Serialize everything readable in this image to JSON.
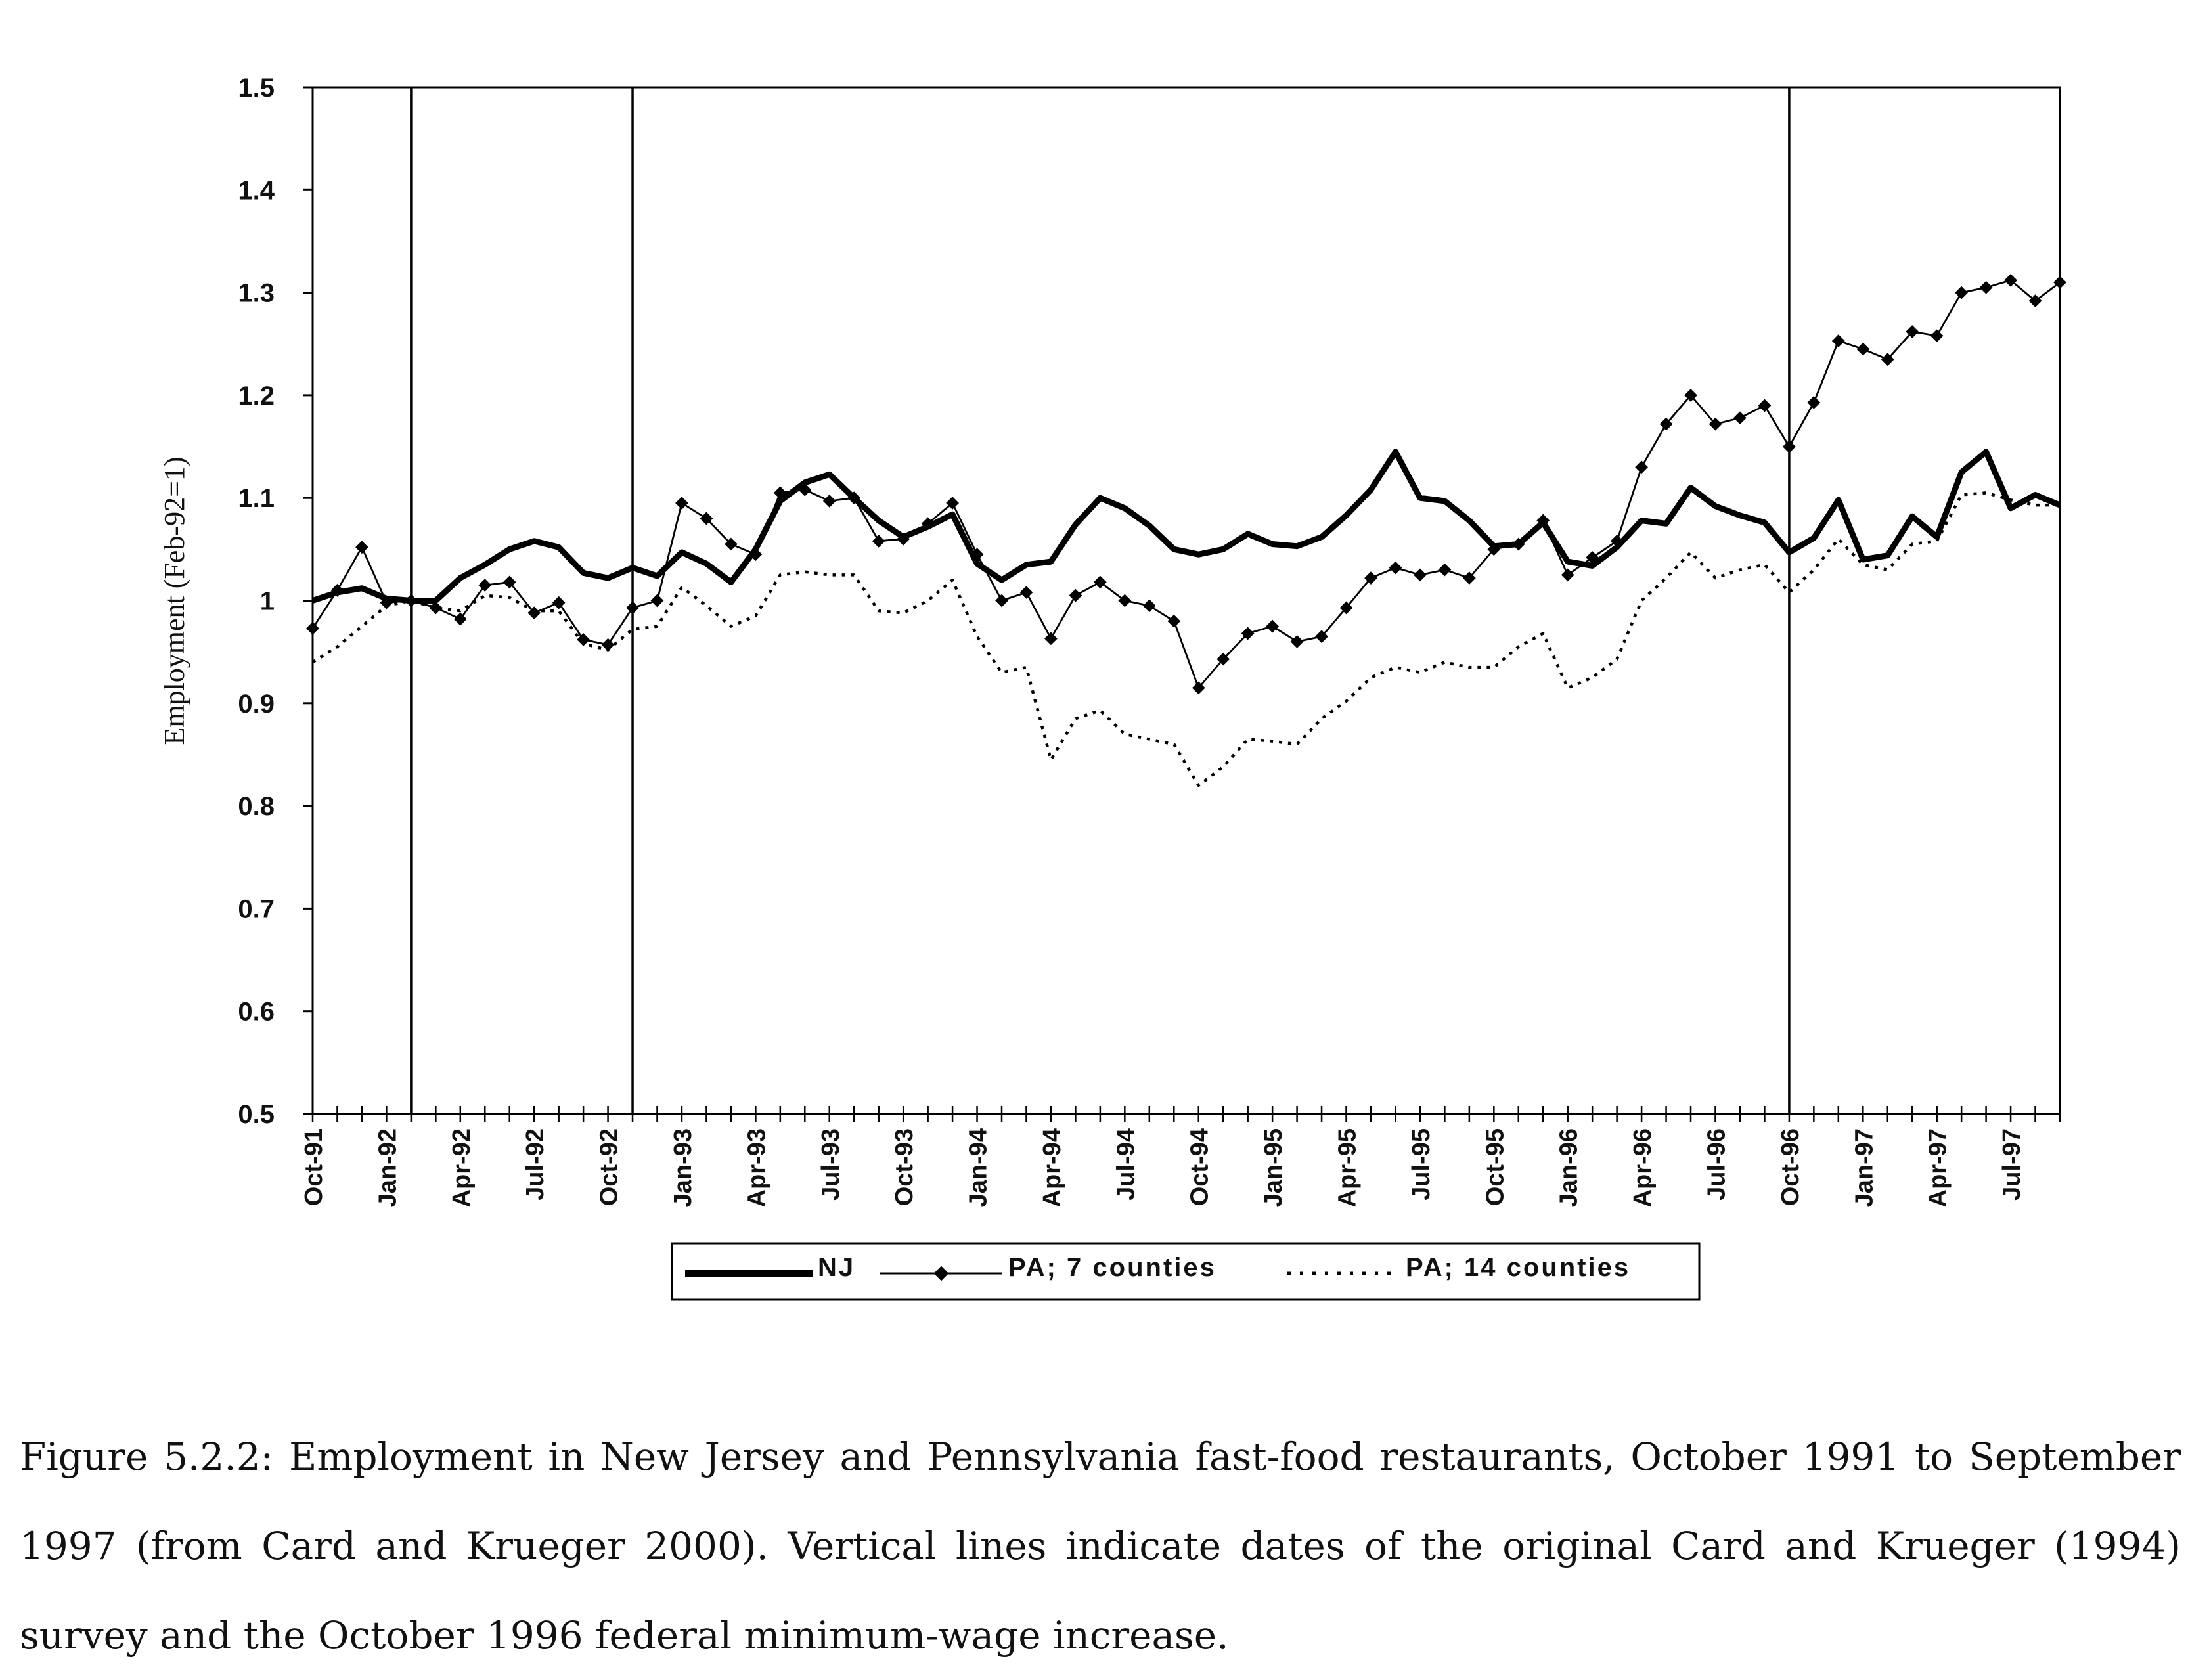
{
  "chart_data": {
    "type": "line",
    "ylabel": "Employment (Feb-92=1)",
    "xlabel": "",
    "ylim": [
      0.5,
      1.5
    ],
    "y_ticks": [
      "0.5",
      "0.6",
      "0.7",
      "0.8",
      "0.9",
      "1",
      "1.1",
      "1.2",
      "1.3",
      "1.4",
      "1.5"
    ],
    "x_start": "Oct-91",
    "x_end": "Sep-97",
    "x_tick_labels": [
      "Oct-91",
      "Jan-92",
      "Apr-92",
      "Jul-92",
      "Oct-92",
      "Jan-93",
      "Apr-93",
      "Jul-93",
      "Oct-93",
      "Jan-94",
      "Apr-94",
      "Jul-94",
      "Oct-94",
      "Jan-95",
      "Apr-95",
      "Jul-95",
      "Oct-95",
      "Jan-96",
      "Apr-96",
      "Jul-96",
      "Oct-96",
      "Jan-97",
      "Apr-97",
      "Jul-97"
    ],
    "vertical_lines": [
      "Feb-92",
      "Nov-92",
      "Oct-96"
    ],
    "grid": false,
    "legend_position": "bottom",
    "series": [
      {
        "name": "NJ",
        "style": "thick-solid",
        "color": "#000000",
        "values": [
          1.0,
          1.008,
          1.012,
          1.002,
          1.0,
          1.0,
          1.022,
          1.035,
          1.05,
          1.058,
          1.052,
          1.027,
          1.022,
          1.032,
          1.024,
          1.047,
          1.036,
          1.018,
          1.05,
          1.097,
          1.115,
          1.123,
          1.1,
          1.078,
          1.062,
          1.072,
          1.084,
          1.036,
          1.02,
          1.035,
          1.038,
          1.074,
          1.1,
          1.09,
          1.073,
          1.05,
          1.045,
          1.05,
          1.065,
          1.055,
          1.053,
          1.062,
          1.083,
          1.108,
          1.145,
          1.1,
          1.097,
          1.078,
          1.053,
          1.055,
          1.076,
          1.038,
          1.034,
          1.052,
          1.078,
          1.075,
          1.11,
          1.092,
          1.083,
          1.076,
          1.047,
          1.061,
          1.098,
          1.04,
          1.044,
          1.082,
          1.062,
          1.125,
          1.145,
          1.09,
          1.103,
          1.093
        ]
      },
      {
        "name": "PA; 7 counties",
        "style": "thin-solid-diamond",
        "color": "#000000",
        "values": [
          0.973,
          1.01,
          1.052,
          0.998,
          1.0,
          0.993,
          0.982,
          1.015,
          1.018,
          0.988,
          0.998,
          0.962,
          0.957,
          0.993,
          1.0,
          1.095,
          1.08,
          1.055,
          1.045,
          1.105,
          1.108,
          1.097,
          1.1,
          1.058,
          1.06,
          1.075,
          1.095,
          1.045,
          1.0,
          1.008,
          0.963,
          1.005,
          1.018,
          1.0,
          0.995,
          0.98,
          0.915,
          0.943,
          0.968,
          0.975,
          0.96,
          0.965,
          0.993,
          1.022,
          1.032,
          1.025,
          1.03,
          1.022,
          1.05,
          1.055,
          1.078,
          1.025,
          1.042,
          1.058,
          1.13,
          1.172,
          1.2,
          1.172,
          1.178,
          1.19,
          1.15,
          1.193,
          1.253,
          1.245,
          1.235,
          1.262,
          1.258,
          1.3,
          1.305,
          1.312,
          1.292,
          1.31
        ]
      },
      {
        "name": "PA; 14 counties",
        "style": "dotted",
        "color": "#000000",
        "values": [
          0.94,
          0.955,
          0.975,
          0.995,
          1.0,
          0.993,
          0.99,
          1.005,
          1.003,
          0.99,
          0.99,
          0.958,
          0.952,
          0.972,
          0.975,
          1.013,
          0.995,
          0.975,
          0.985,
          1.025,
          1.028,
          1.025,
          1.025,
          0.99,
          0.988,
          1.0,
          1.02,
          0.965,
          0.93,
          0.935,
          0.845,
          0.885,
          0.893,
          0.87,
          0.865,
          0.86,
          0.82,
          0.838,
          0.865,
          0.863,
          0.86,
          0.885,
          0.902,
          0.925,
          0.935,
          0.93,
          0.94,
          0.935,
          0.935,
          0.955,
          0.968,
          0.915,
          0.925,
          0.943,
          1.0,
          1.022,
          1.047,
          1.022,
          1.03,
          1.035,
          1.008,
          1.03,
          1.06,
          1.035,
          1.03,
          1.055,
          1.058,
          1.103,
          1.105,
          1.098,
          1.093,
          1.093
        ]
      }
    ]
  },
  "caption": "Figure 5.2.2: Employment in New Jersey and Pennsylvania fast-food restaurants, October 1991 to September 1997 (from Card and Krueger 2000). Vertical lines indicate dates of the original Card and Krueger (1994) survey and the October 1996 federal minimum-wage increase."
}
